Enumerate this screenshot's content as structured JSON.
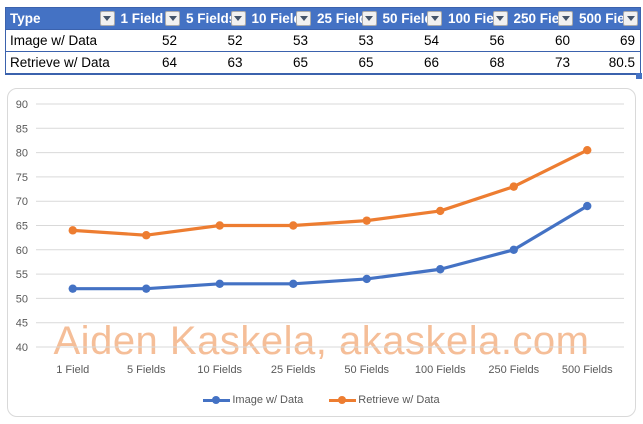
{
  "table": {
    "columns": [
      "Type",
      "1 Field",
      "5 Fields",
      "10 Field",
      "25 Field",
      "50 Field",
      "100 Fie",
      "250 Fie",
      "500 Fie"
    ],
    "rows": [
      {
        "label": "Image w/ Data",
        "values": [
          52,
          52,
          53,
          53,
          54,
          56,
          60,
          69
        ]
      },
      {
        "label": "Retrieve w/ Data",
        "values": [
          64,
          63,
          65,
          65,
          66,
          68,
          73,
          80.5
        ]
      }
    ]
  },
  "chart_data": {
    "type": "line",
    "categories": [
      "1 Field",
      "5 Fields",
      "10 Fields",
      "25 Fields",
      "50 Fields",
      "100 Fields",
      "250 Fields",
      "500 Fields"
    ],
    "series": [
      {
        "name": "Image w/ Data",
        "color": "#4472C4",
        "values": [
          52,
          52,
          53,
          53,
          54,
          56,
          60,
          69
        ]
      },
      {
        "name": "Retrieve w/ Data",
        "color": "#ED7D31",
        "values": [
          64,
          63,
          65,
          65,
          66,
          68,
          73,
          80.5
        ]
      }
    ],
    "title": "",
    "xlabel": "",
    "ylabel": "",
    "ylim": [
      40,
      90
    ],
    "ytick_step": 5,
    "grid": true,
    "gridline_color": "#D9D9D9",
    "axis_text_color": "#595959",
    "legend_position": "bottom"
  },
  "watermark": {
    "text": "Aiden Kaskela, akaskela.com",
    "color": "#F5BE98"
  },
  "colors": {
    "header_fill": "#4472C4",
    "table_border": "#3B62AD",
    "series_blue": "#4472C4",
    "series_orange": "#ED7D31"
  }
}
